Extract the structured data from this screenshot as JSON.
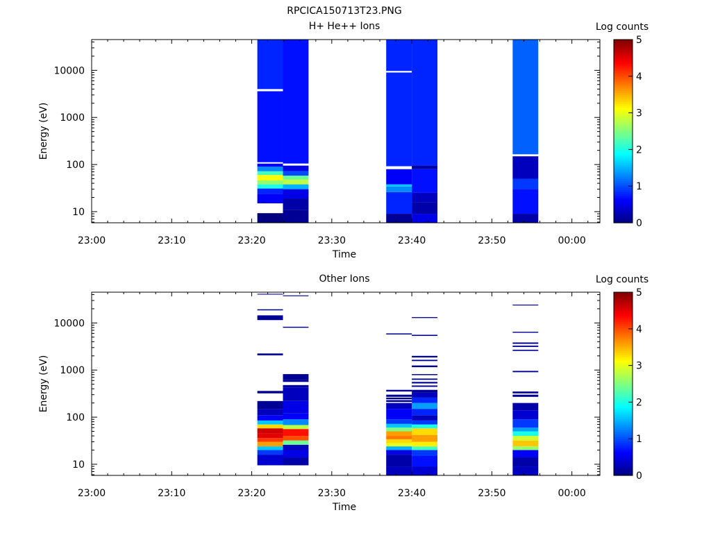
{
  "figure_title": "RPCICA150713T23.PNG",
  "chart_data": [
    {
      "type": "heatmap",
      "title": "H+ He++ Ions",
      "xlabel": "Time",
      "ylabel": "Energy (eV)",
      "x_tick_labels": [
        "23:00",
        "23:10",
        "23:20",
        "23:30",
        "23:40",
        "23:50",
        "00:00"
      ],
      "x_tick_minutes": [
        0,
        10,
        20,
        30,
        40,
        50,
        60
      ],
      "xlim_minutes": [
        0,
        63.5
      ],
      "yscale": "log",
      "ylim": [
        5.8,
        45000
      ],
      "y_tick_labels": [
        "10",
        "100",
        "1000",
        "10000"
      ],
      "y_tick_values": [
        10,
        100,
        1000,
        10000
      ],
      "colorbar": {
        "label": "Log counts",
        "ticks": [
          "0",
          "1",
          "2",
          "3",
          "4",
          "5"
        ],
        "range": [
          0,
          5
        ],
        "colormap": "jet"
      },
      "columns": [
        {
          "t_start": 20.7,
          "t_end": 23.9,
          "bins": [
            [
              5.8,
              9.3,
              0.0
            ],
            [
              9.3,
              15,
              -1
            ],
            [
              15,
              24,
              0.6
            ],
            [
              24,
              31,
              0.8
            ],
            [
              31,
              38,
              2.0
            ],
            [
              38,
              46,
              2.6
            ],
            [
              46,
              60,
              3.1
            ],
            [
              60,
              72,
              2.2
            ],
            [
              72,
              90,
              1.3
            ],
            [
              90,
              105,
              0.6
            ],
            [
              105,
              112,
              -1
            ],
            [
              112,
              3600,
              0.7
            ],
            [
              3600,
              4000,
              -1
            ],
            [
              4000,
              45000,
              0.8
            ]
          ]
        },
        {
          "t_start": 23.9,
          "t_end": 27.1,
          "bins": [
            [
              5.8,
              11,
              0.1
            ],
            [
              11,
              19,
              0.2
            ],
            [
              19,
              30,
              0.5
            ],
            [
              30,
              38,
              1.5
            ],
            [
              38,
              48,
              2.8
            ],
            [
              48,
              58,
              2.4
            ],
            [
              58,
              72,
              1.0
            ],
            [
              72,
              95,
              0.5
            ],
            [
              95,
              105,
              -1
            ],
            [
              105,
              45000,
              0.7
            ]
          ]
        },
        {
          "t_start": 36.8,
          "t_end": 40.0,
          "bins": [
            [
              5.8,
              9,
              0.1
            ],
            [
              9,
              26,
              0.8
            ],
            [
              26,
              34,
              1.3
            ],
            [
              34,
              38,
              1.6
            ],
            [
              38,
              80,
              0.6
            ],
            [
              80,
              92,
              -1
            ],
            [
              92,
              9000,
              0.8
            ],
            [
              9000,
              9700,
              -1
            ],
            [
              9700,
              45000,
              0.8
            ]
          ]
        },
        {
          "t_start": 40.0,
          "t_end": 43.2,
          "bins": [
            [
              5.8,
              9,
              0.5
            ],
            [
              9,
              16,
              0.2
            ],
            [
              16,
              25,
              0.3
            ],
            [
              25,
              80,
              0.7
            ],
            [
              80,
              95,
              0.2
            ],
            [
              95,
              45000,
              0.8
            ]
          ]
        },
        {
          "t_start": 52.6,
          "t_end": 55.8,
          "bins": [
            [
              5.8,
              9,
              0.2
            ],
            [
              9,
              30,
              0.7
            ],
            [
              30,
              50,
              0.9
            ],
            [
              50,
              150,
              0.3
            ],
            [
              150,
              165,
              -1
            ],
            [
              165,
              45000,
              1.1
            ]
          ]
        }
      ]
    },
    {
      "type": "heatmap",
      "title": "Other Ions",
      "xlabel": "Time",
      "ylabel": "Energy (eV)",
      "x_tick_labels": [
        "23:00",
        "23:10",
        "23:20",
        "23:30",
        "23:40",
        "23:50",
        "00:00"
      ],
      "x_tick_minutes": [
        0,
        10,
        20,
        30,
        40,
        50,
        60
      ],
      "xlim_minutes": [
        0,
        63.5
      ],
      "yscale": "log",
      "ylim": [
        5.8,
        45000
      ],
      "y_tick_labels": [
        "10",
        "100",
        "1000",
        "10000"
      ],
      "y_tick_values": [
        10,
        100,
        1000,
        10000
      ],
      "colorbar": {
        "label": "Log counts",
        "ticks": [
          "0",
          "1",
          "2",
          "3",
          "4",
          "5"
        ],
        "range": [
          0,
          5
        ],
        "colormap": "jet"
      },
      "columns": [
        {
          "t_start": 20.7,
          "t_end": 23.9,
          "bins": [
            [
              9.5,
              16,
              0.4
            ],
            [
              16,
              20,
              0.9
            ],
            [
              20,
              24,
              1.6
            ],
            [
              24,
              30,
              3.6
            ],
            [
              30,
              36,
              4.1
            ],
            [
              36,
              45,
              4.5
            ],
            [
              45,
              58,
              4.6
            ],
            [
              58,
              70,
              3.3
            ],
            [
              70,
              85,
              1.6
            ],
            [
              85,
              110,
              0.6
            ],
            [
              110,
              150,
              0.3
            ],
            [
              150,
              220,
              0.1
            ],
            [
              320,
              360,
              0.1
            ],
            [
              2050,
              2250,
              0.1
            ],
            [
              11500,
              14500,
              0.1
            ],
            [
              18500,
              19500,
              0.1
            ],
            [
              40000,
              41500,
              0.1
            ]
          ]
        },
        {
          "t_start": 23.9,
          "t_end": 27.1,
          "bins": [
            [
              9.5,
              14,
              0.2
            ],
            [
              14,
              20,
              0.5
            ],
            [
              20,
              26,
              0.3
            ],
            [
              26,
              32,
              2.4
            ],
            [
              32,
              40,
              4.0
            ],
            [
              40,
              56,
              4.3
            ],
            [
              56,
              68,
              2.8
            ],
            [
              68,
              90,
              1.3
            ],
            [
              90,
              120,
              0.6
            ],
            [
              120,
              220,
              0.5
            ],
            [
              220,
              420,
              0.3
            ],
            [
              420,
              480,
              0.2
            ],
            [
              560,
              620,
              0.1
            ],
            [
              620,
              820,
              0.1
            ],
            [
              7900,
              8300,
              0.1
            ],
            [
              37000,
              38500,
              0.1
            ]
          ]
        },
        {
          "t_start": 36.8,
          "t_end": 40.0,
          "bins": [
            [
              5.8,
              9,
              0.3
            ],
            [
              9,
              16,
              0.2
            ],
            [
              16,
              20,
              0.5
            ],
            [
              20,
              24,
              1.5
            ],
            [
              24,
              28,
              3.0
            ],
            [
              28,
              34,
              3.3
            ],
            [
              34,
              40,
              3.8
            ],
            [
              40,
              50,
              3.6
            ],
            [
              50,
              60,
              2.5
            ],
            [
              60,
              72,
              1.6
            ],
            [
              72,
              90,
              0.9
            ],
            [
              90,
              150,
              0.6
            ],
            [
              150,
              200,
              0.3
            ],
            [
              210,
              230,
              0.1
            ],
            [
              240,
              260,
              0.1
            ],
            [
              270,
              300,
              0.1
            ],
            [
              350,
              380,
              0.1
            ],
            [
              5700,
              6000,
              0.1
            ]
          ]
        },
        {
          "t_start": 40.0,
          "t_end": 43.2,
          "bins": [
            [
              5.8,
              9,
              0.4
            ],
            [
              9,
              15,
              0.7
            ],
            [
              15,
              20,
              0.9
            ],
            [
              20,
              24,
              2.2
            ],
            [
              24,
              30,
              3.2
            ],
            [
              30,
              42,
              3.6
            ],
            [
              42,
              58,
              3.3
            ],
            [
              58,
              70,
              2.0
            ],
            [
              70,
              85,
              0.9
            ],
            [
              85,
              110,
              0.3
            ],
            [
              110,
              150,
              0.8
            ],
            [
              150,
              200,
              1.4
            ],
            [
              200,
              260,
              0.8
            ],
            [
              260,
              330,
              0.3
            ],
            [
              330,
              380,
              0.1
            ],
            [
              440,
              470,
              0.1
            ],
            [
              520,
              560,
              0.1
            ],
            [
              620,
              660,
              0.1
            ],
            [
              780,
              820,
              0.1
            ],
            [
              1150,
              1250,
              0.1
            ],
            [
              1550,
              1650,
              0.1
            ],
            [
              1850,
              2000,
              0.1
            ],
            [
              5300,
              5600,
              0.1
            ],
            [
              12700,
              13300,
              0.1
            ]
          ]
        },
        {
          "t_start": 52.6,
          "t_end": 55.8,
          "bins": [
            [
              5.8,
              9,
              0.3
            ],
            [
              9,
              14,
              0.2
            ],
            [
              14,
              20,
              0.6
            ],
            [
              20,
              24,
              2.6
            ],
            [
              24,
              32,
              3.4
            ],
            [
              32,
              40,
              2.9
            ],
            [
              40,
              50,
              2.0
            ],
            [
              50,
              60,
              1.4
            ],
            [
              60,
              90,
              0.9
            ],
            [
              90,
              140,
              0.4
            ],
            [
              140,
              200,
              0.2
            ],
            [
              270,
              300,
              0.1
            ],
            [
              320,
              350,
              0.1
            ],
            [
              900,
              960,
              0.1
            ],
            [
              2550,
              2700,
              0.1
            ],
            [
              3100,
              3300,
              0.1
            ],
            [
              3600,
              3850,
              0.1
            ],
            [
              6200,
              6500,
              0.1
            ],
            [
              23500,
              24500,
              0.1
            ]
          ]
        }
      ]
    }
  ]
}
